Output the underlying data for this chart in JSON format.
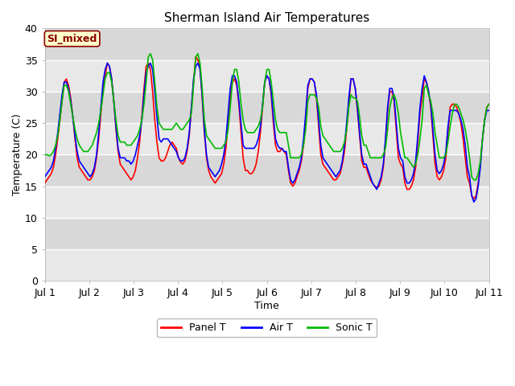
{
  "title": "Sherman Island Air Temperatures",
  "xlabel": "Time",
  "ylabel": "Temperature (C)",
  "ylim": [
    0,
    40
  ],
  "xlim": [
    0,
    10
  ],
  "xtick_labels": [
    "Jul 1",
    "Jul 2",
    "Jul 3",
    "Jul 4",
    "Jul 5",
    "Jul 6",
    "Jul 7",
    "Jul 8",
    "Jul 9",
    "Jul 10",
    "Jul 11"
  ],
  "ytick_values": [
    0,
    5,
    10,
    15,
    20,
    25,
    30,
    35,
    40
  ],
  "bg_light": "#e8e8e8",
  "bg_dark": "#d8d8d8",
  "legend_label": "SI_mixed",
  "legend_bg": "#ffffcc",
  "legend_edge": "#8b0000",
  "legend_text_color": "#8b0000",
  "panel_color": "#ff0000",
  "air_color": "#0000ff",
  "sonic_color": "#00bb00",
  "line_width": 1.2,
  "panel_t": [
    15.5,
    16.0,
    16.5,
    17.0,
    18.0,
    20.0,
    22.5,
    25.5,
    28.5,
    31.5,
    32.0,
    31.0,
    29.0,
    26.0,
    22.5,
    19.5,
    18.0,
    17.5,
    17.0,
    16.5,
    16.0,
    16.0,
    16.5,
    17.5,
    19.5,
    22.5,
    26.5,
    30.5,
    32.5,
    34.5,
    34.0,
    32.0,
    28.5,
    24.0,
    20.5,
    18.5,
    18.0,
    17.5,
    17.0,
    16.5,
    16.0,
    16.5,
    17.5,
    19.5,
    22.0,
    26.0,
    30.5,
    34.0,
    34.5,
    33.5,
    30.0,
    25.5,
    22.0,
    19.5,
    19.0,
    19.0,
    19.5,
    20.5,
    21.5,
    22.0,
    21.5,
    21.0,
    19.5,
    18.8,
    18.5,
    19.0,
    20.5,
    23.0,
    27.5,
    31.5,
    35.5,
    35.0,
    33.5,
    29.0,
    23.5,
    19.5,
    17.5,
    16.5,
    16.0,
    15.5,
    16.0,
    16.5,
    17.0,
    18.5,
    21.0,
    25.0,
    29.0,
    31.5,
    32.0,
    31.0,
    28.0,
    23.5,
    19.5,
    17.5,
    17.5,
    17.0,
    17.0,
    17.5,
    18.5,
    20.5,
    23.5,
    27.5,
    31.5,
    32.5,
    32.0,
    29.5,
    25.0,
    21.5,
    20.5,
    20.5,
    21.0,
    20.5,
    20.0,
    17.5,
    15.5,
    15.0,
    15.5,
    16.5,
    17.5,
    19.0,
    21.5,
    25.5,
    30.5,
    32.0,
    32.0,
    31.5,
    29.0,
    24.5,
    20.0,
    18.5,
    18.0,
    17.5,
    17.0,
    16.5,
    16.0,
    16.0,
    16.5,
    17.0,
    18.5,
    20.5,
    24.0,
    28.0,
    32.0,
    32.0,
    30.5,
    27.0,
    23.0,
    19.0,
    18.0,
    18.0,
    17.0,
    16.0,
    15.5,
    15.0,
    14.8,
    15.0,
    16.0,
    18.0,
    22.0,
    27.0,
    30.0,
    30.0,
    28.5,
    24.0,
    19.5,
    18.5,
    18.0,
    15.5,
    14.5,
    14.5,
    15.0,
    16.0,
    18.0,
    22.0,
    26.5,
    29.0,
    32.0,
    31.5,
    30.0,
    27.5,
    23.0,
    18.5,
    16.5,
    16.0,
    16.5,
    17.5,
    19.5,
    23.5,
    27.5,
    28.0,
    28.0,
    27.5,
    26.5,
    25.0,
    22.5,
    19.5,
    16.5,
    15.5,
    13.5,
    13.0,
    13.5,
    15.5,
    18.5,
    22.5,
    25.5,
    27.5,
    28.0
  ],
  "air_t": [
    16.5,
    17.0,
    17.5,
    18.0,
    19.0,
    21.0,
    23.5,
    26.5,
    29.5,
    31.5,
    31.5,
    30.5,
    28.5,
    26.0,
    23.0,
    20.5,
    19.0,
    18.5,
    18.0,
    17.5,
    17.0,
    16.5,
    17.0,
    18.0,
    20.0,
    23.5,
    27.5,
    31.5,
    33.5,
    34.5,
    34.0,
    32.0,
    28.5,
    24.5,
    21.0,
    19.5,
    19.5,
    19.5,
    19.0,
    19.0,
    18.5,
    19.0,
    20.0,
    21.5,
    23.0,
    25.5,
    29.5,
    33.0,
    34.0,
    34.5,
    33.5,
    30.0,
    26.0,
    22.5,
    22.0,
    22.5,
    22.5,
    22.5,
    22.0,
    21.5,
    21.0,
    20.5,
    19.5,
    19.0,
    19.0,
    19.5,
    21.0,
    23.5,
    27.5,
    32.0,
    34.0,
    34.5,
    33.5,
    29.5,
    24.0,
    20.0,
    18.0,
    17.5,
    17.0,
    16.5,
    17.0,
    17.5,
    18.5,
    20.0,
    22.5,
    26.5,
    30.5,
    32.5,
    32.5,
    31.5,
    28.5,
    25.0,
    21.5,
    21.0,
    21.0,
    21.0,
    21.0,
    21.0,
    21.5,
    22.5,
    24.5,
    28.0,
    31.5,
    32.5,
    32.0,
    30.0,
    26.0,
    22.5,
    21.5,
    21.0,
    21.0,
    20.5,
    20.5,
    18.0,
    16.0,
    15.5,
    16.0,
    17.0,
    18.0,
    19.5,
    22.5,
    26.5,
    31.0,
    32.0,
    32.0,
    31.5,
    29.5,
    25.5,
    21.5,
    19.5,
    19.0,
    18.5,
    18.0,
    17.5,
    17.0,
    16.5,
    17.0,
    17.5,
    19.0,
    21.5,
    25.0,
    29.0,
    32.0,
    32.0,
    30.5,
    27.5,
    23.5,
    20.0,
    18.5,
    18.5,
    17.5,
    16.5,
    15.5,
    15.0,
    14.5,
    15.5,
    16.5,
    18.5,
    22.5,
    27.5,
    30.5,
    30.5,
    29.0,
    25.0,
    21.0,
    19.5,
    19.0,
    16.5,
    15.5,
    15.5,
    16.0,
    17.0,
    19.0,
    23.0,
    27.5,
    30.5,
    32.5,
    31.5,
    30.0,
    28.0,
    24.0,
    20.0,
    17.5,
    17.0,
    17.5,
    18.5,
    20.5,
    24.5,
    27.0,
    27.0,
    27.0,
    27.0,
    26.5,
    25.5,
    24.0,
    21.5,
    18.0,
    16.5,
    13.5,
    12.5,
    13.0,
    15.0,
    18.0,
    22.5,
    25.5,
    27.0,
    27.0
  ],
  "sonic_t": [
    20.0,
    20.0,
    19.8,
    20.0,
    20.5,
    21.5,
    23.0,
    25.5,
    28.5,
    31.0,
    31.0,
    30.0,
    28.0,
    26.0,
    24.0,
    22.5,
    21.5,
    21.0,
    20.5,
    20.5,
    20.5,
    21.0,
    21.5,
    22.5,
    23.5,
    25.0,
    27.0,
    29.5,
    32.0,
    33.0,
    33.0,
    31.5,
    28.5,
    25.5,
    23.0,
    22.0,
    22.0,
    22.0,
    21.5,
    21.5,
    21.5,
    22.0,
    22.5,
    23.0,
    24.0,
    25.5,
    28.0,
    31.5,
    35.5,
    36.0,
    35.0,
    31.5,
    27.5,
    25.0,
    24.5,
    24.0,
    24.0,
    24.0,
    24.0,
    24.0,
    24.5,
    25.0,
    24.5,
    24.0,
    24.0,
    24.5,
    25.0,
    25.5,
    26.5,
    31.0,
    35.5,
    36.0,
    34.5,
    30.5,
    25.5,
    23.0,
    22.5,
    22.0,
    21.5,
    21.0,
    21.0,
    21.0,
    21.0,
    21.5,
    22.0,
    24.0,
    27.5,
    31.5,
    33.5,
    33.5,
    31.5,
    28.0,
    25.5,
    24.0,
    23.5,
    23.5,
    23.5,
    23.5,
    24.0,
    24.5,
    25.5,
    27.5,
    31.5,
    33.5,
    33.5,
    31.5,
    28.5,
    25.5,
    24.0,
    23.5,
    23.5,
    23.5,
    23.5,
    21.5,
    19.5,
    19.5,
    19.5,
    19.5,
    19.5,
    20.0,
    21.5,
    24.0,
    28.5,
    29.5,
    29.5,
    29.5,
    29.0,
    27.5,
    24.5,
    23.0,
    22.5,
    22.0,
    21.5,
    21.0,
    20.5,
    20.5,
    20.5,
    20.5,
    21.0,
    22.0,
    24.0,
    27.5,
    29.5,
    29.0,
    29.0,
    28.5,
    26.0,
    23.0,
    21.5,
    21.5,
    20.5,
    19.5,
    19.5,
    19.5,
    19.5,
    19.5,
    19.5,
    20.0,
    21.0,
    24.0,
    27.5,
    29.0,
    29.5,
    28.5,
    26.5,
    23.5,
    21.5,
    19.5,
    19.5,
    19.0,
    18.5,
    18.0,
    18.5,
    20.0,
    22.5,
    25.5,
    30.5,
    31.0,
    29.5,
    28.5,
    26.5,
    23.5,
    21.5,
    19.5,
    19.5,
    19.5,
    20.0,
    22.0,
    24.5,
    26.5,
    28.0,
    28.0,
    27.5,
    26.5,
    25.5,
    24.0,
    22.0,
    19.5,
    16.5,
    16.0,
    16.0,
    17.0,
    19.0,
    22.5,
    25.5,
    27.5,
    28.0
  ]
}
